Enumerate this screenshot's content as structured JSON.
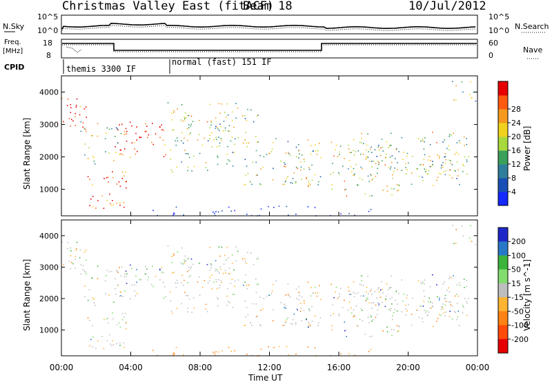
{
  "header": {
    "title": "Christmas Valley East (fitACF)",
    "beam": "Beam 18",
    "date": "10/Jul/2012"
  },
  "top_panel": {
    "left_label": "N.Sky",
    "right_label": "N.Search",
    "left_ticks": [
      "10^5",
      "10^0"
    ],
    "right_ticks": [
      "10^5",
      "10^0"
    ]
  },
  "freq_panel": {
    "left_label_1": "Freq.",
    "left_label_2": "[MHz]",
    "right_label": "Nave",
    "left_ticks": [
      "18",
      "8"
    ],
    "right_ticks": [
      "60",
      "0"
    ]
  },
  "cpid": {
    "label": "CPID",
    "modes": [
      "themis 3300 IF",
      "normal (fast) 151 IF"
    ]
  },
  "chart_data": [
    {
      "type": "heatmap",
      "quantity": "Power",
      "ylabel": "Slant Range [km]",
      "colorbar_label": "Power [dB]",
      "ylim": [
        180,
        4500
      ],
      "yticks": [
        1000,
        2000,
        3000,
        4000
      ],
      "colorbar_ticks": [
        "4",
        "8",
        "12",
        "16",
        "20",
        "24",
        "28"
      ],
      "colors": [
        "#1428ff",
        "#1a4fb5",
        "#2f7f9c",
        "#3aa05a",
        "#a8d83c",
        "#f0d21e",
        "#f59a1e",
        "#ff5a10",
        "#e60000"
      ]
    },
    {
      "type": "heatmap",
      "quantity": "Velocity",
      "ylabel": "Slant Range [km]",
      "colorbar_label": "Velocity [m s^-1]",
      "ylim": [
        180,
        4500
      ],
      "yticks": [
        1000,
        2000,
        3000,
        4000
      ],
      "xlabel": "Time UT",
      "xticks": [
        "00:00",
        "04:00",
        "08:00",
        "12:00",
        "16:00",
        "20:00",
        "00:00"
      ],
      "colorbar_ticks": [
        "200",
        "100",
        "50",
        "15",
        "-15",
        "-50",
        "-100",
        "-200"
      ],
      "colors": [
        "#1e28c8",
        "#2878c8",
        "#3cb43c",
        "#82dc6e",
        "#bebebe",
        "#ffb432",
        "#ff8214",
        "#ff4a0a",
        "#e60000"
      ]
    }
  ]
}
